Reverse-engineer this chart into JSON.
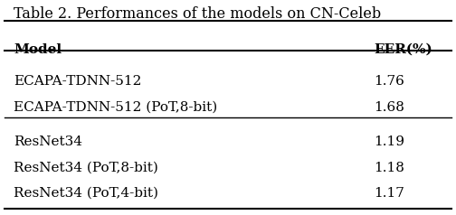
{
  "title": "Table 2. Performances of the models on CN-Celeb",
  "col_headers": [
    "Model",
    "EER(%)"
  ],
  "rows": [
    [
      "ECAPA-TDNN-512",
      "1.76"
    ],
    [
      "ECAPA-TDNN-512 (PoT,8-bit)",
      "1.68"
    ],
    [
      "ResNet34",
      "1.19"
    ],
    [
      "ResNet34 (PoT,8-bit)",
      "1.18"
    ],
    [
      "ResNet34 (PoT,4-bit)",
      "1.17"
    ]
  ],
  "background_color": "#ffffff",
  "text_color": "#000000",
  "font_size": 11,
  "header_font_size": 11,
  "title_font_size": 11.5
}
